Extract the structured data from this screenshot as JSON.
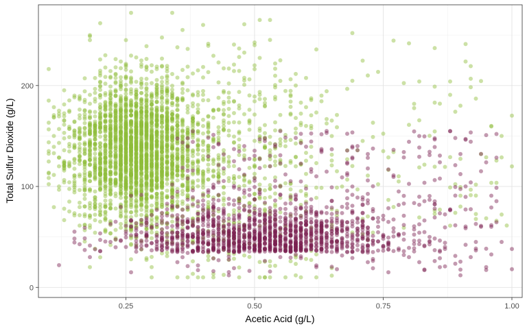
{
  "chart_data": {
    "type": "scatter",
    "title": "",
    "xlabel": "Acetic Acid (g/L)",
    "ylabel": "Total Sulfur Dioxide (g/L)",
    "xlim": [
      0.08,
      1.02
    ],
    "ylim": [
      -10,
      280
    ],
    "x_ticks": [
      0.25,
      0.5,
      0.75,
      1.0
    ],
    "x_tick_labels": [
      "0.25",
      "0.50",
      "0.75",
      "1.00"
    ],
    "y_ticks": [
      0,
      100,
      200
    ],
    "y_tick_labels": [
      "0",
      "100",
      "200"
    ],
    "grid": true,
    "legend": "none",
    "series": [
      {
        "color": "#8fbc3a",
        "point_count": 3400,
        "points": [
          [
            0.1,
            135
          ],
          [
            0.11,
            150
          ],
          [
            0.12,
            120
          ],
          [
            0.12,
            100
          ],
          [
            0.13,
            165
          ],
          [
            0.14,
            85
          ],
          [
            0.15,
            140
          ],
          [
            0.15,
            190
          ],
          [
            0.16,
            110
          ],
          [
            0.17,
            175
          ],
          [
            0.18,
            250
          ],
          [
            0.18,
            245
          ],
          [
            0.19,
            95
          ],
          [
            0.2,
            210
          ],
          [
            0.21,
            230
          ],
          [
            0.22,
            160
          ],
          [
            0.23,
            120
          ],
          [
            0.24,
            200
          ],
          [
            0.25,
            245
          ],
          [
            0.26,
            272
          ],
          [
            0.27,
            180
          ],
          [
            0.28,
            150
          ],
          [
            0.29,
            110
          ],
          [
            0.3,
            220
          ],
          [
            0.31,
            170
          ],
          [
            0.32,
            140
          ],
          [
            0.33,
            205
          ],
          [
            0.34,
            90
          ],
          [
            0.35,
            185
          ],
          [
            0.36,
            255
          ],
          [
            0.38,
            130
          ],
          [
            0.4,
            260
          ],
          [
            0.42,
            175
          ],
          [
            0.45,
            120
          ],
          [
            0.48,
            205
          ],
          [
            0.5,
            240
          ],
          [
            0.52,
            180
          ],
          [
            0.55,
            225
          ],
          [
            0.58,
            200
          ],
          [
            0.6,
            160
          ],
          [
            0.63,
            190
          ],
          [
            0.66,
            115
          ],
          [
            0.69,
            252
          ],
          [
            0.72,
            210
          ],
          [
            0.75,
            135
          ],
          [
            0.78,
            110
          ],
          [
            0.82,
            204
          ],
          [
            0.85,
            183
          ],
          [
            0.88,
            204
          ],
          [
            0.9,
            180
          ],
          [
            0.93,
            187
          ],
          [
            0.96,
            160
          ],
          [
            0.98,
            150
          ]
        ]
      },
      {
        "color": "#7a1f4f",
        "point_count": 1600,
        "points": [
          [
            0.12,
            22
          ],
          [
            0.18,
            30
          ],
          [
            0.22,
            45
          ],
          [
            0.26,
            15
          ],
          [
            0.3,
            60
          ],
          [
            0.35,
            25
          ],
          [
            0.4,
            35
          ],
          [
            0.42,
            80
          ],
          [
            0.45,
            12
          ],
          [
            0.48,
            140
          ],
          [
            0.5,
            55
          ],
          [
            0.52,
            145
          ],
          [
            0.55,
            30
          ],
          [
            0.58,
            90
          ],
          [
            0.6,
            65
          ],
          [
            0.62,
            20
          ],
          [
            0.64,
            155
          ],
          [
            0.66,
            45
          ],
          [
            0.68,
            35
          ],
          [
            0.7,
            140
          ],
          [
            0.72,
            25
          ],
          [
            0.74,
            60
          ],
          [
            0.76,
            15
          ],
          [
            0.78,
            95
          ],
          [
            0.8,
            30
          ],
          [
            0.82,
            25
          ],
          [
            0.84,
            50
          ],
          [
            0.86,
            20
          ],
          [
            0.88,
            155
          ],
          [
            0.89,
            148
          ],
          [
            0.9,
            12
          ],
          [
            0.91,
            100
          ],
          [
            0.92,
            30
          ],
          [
            0.93,
            45
          ],
          [
            0.94,
            115
          ],
          [
            0.95,
            20
          ],
          [
            0.96,
            60
          ],
          [
            0.97,
            152
          ],
          [
            0.98,
            45
          ],
          [
            1.0,
            18
          ],
          [
            1.0,
            38
          ]
        ]
      }
    ]
  }
}
